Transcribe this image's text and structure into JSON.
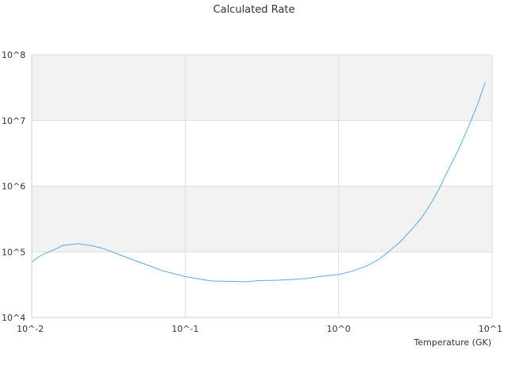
{
  "chart_data": {
    "type": "line",
    "title": "Calculated Rate",
    "xlabel": "Temperature (GK)",
    "ylabel": "",
    "x_scale": "log",
    "y_scale": "log",
    "xlim": [
      0.01,
      10
    ],
    "ylim": [
      10000,
      100000000
    ],
    "x_tick_labels": [
      "10^-2",
      "10^-1",
      "10^0",
      "10^1"
    ],
    "y_tick_labels": [
      "10^4",
      "10^5",
      "10^6",
      "10^7",
      "10^8"
    ],
    "grid": true,
    "legend": "none",
    "colors": {
      "line": "#5fa8e6",
      "band": "#f2f2f2",
      "grid": "#dddddd"
    },
    "series": [
      {
        "x": [
          0.01,
          0.011,
          0.012,
          0.014,
          0.016,
          0.02,
          0.025,
          0.03,
          0.04,
          0.05,
          0.06,
          0.07,
          0.08,
          0.1,
          0.12,
          0.15,
          0.2,
          0.25,
          0.3,
          0.4,
          0.5,
          0.6,
          0.7,
          0.8,
          1.0,
          1.2,
          1.5,
          1.8,
          2.0,
          2.5,
          3.0,
          3.5,
          4.0,
          4.5,
          5.0,
          6.0,
          7.0,
          8.0,
          9.0
        ],
        "y": [
          70000,
          83000,
          93000,
          108000,
          125000,
          133000,
          123000,
          110000,
          85000,
          70000,
          60000,
          52000,
          48000,
          42000,
          39000,
          36000,
          35500,
          35000,
          36500,
          37000,
          38000,
          39000,
          41000,
          43000,
          45000,
          50000,
          60000,
          75000,
          90000,
          140000,
          220000,
          340000,
          550000,
          900000,
          1500000,
          3500000,
          8000000,
          17000000,
          38000000
        ]
      }
    ]
  }
}
